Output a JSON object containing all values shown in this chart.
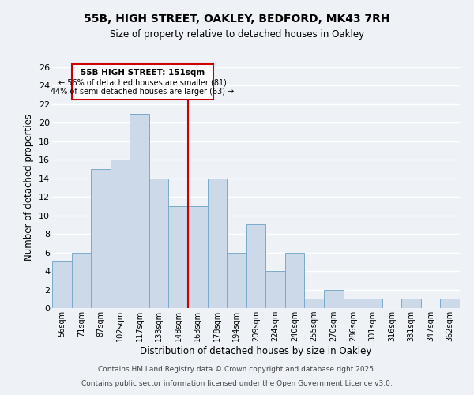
{
  "title1": "55B, HIGH STREET, OAKLEY, BEDFORD, MK43 7RH",
  "title2": "Size of property relative to detached houses in Oakley",
  "xlabel": "Distribution of detached houses by size in Oakley",
  "ylabel": "Number of detached properties",
  "bar_color": "#ccd9e8",
  "bar_edge_color": "#7aaaca",
  "categories": [
    "56sqm",
    "71sqm",
    "87sqm",
    "102sqm",
    "117sqm",
    "133sqm",
    "148sqm",
    "163sqm",
    "178sqm",
    "194sqm",
    "209sqm",
    "224sqm",
    "240sqm",
    "255sqm",
    "270sqm",
    "286sqm",
    "301sqm",
    "316sqm",
    "331sqm",
    "347sqm",
    "362sqm"
  ],
  "values": [
    5,
    6,
    15,
    16,
    21,
    14,
    11,
    11,
    14,
    6,
    9,
    4,
    6,
    1,
    2,
    1,
    1,
    0,
    1,
    0,
    1
  ],
  "ylim": [
    0,
    26
  ],
  "yticks": [
    0,
    2,
    4,
    6,
    8,
    10,
    12,
    14,
    16,
    18,
    20,
    22,
    24,
    26
  ],
  "vline_x_idx": 6,
  "vline_color": "#cc0000",
  "annotation_title": "55B HIGH STREET: 151sqm",
  "annotation_line1": "← 56% of detached houses are smaller (81)",
  "annotation_line2": "44% of semi-detached houses are larger (63) →",
  "annotation_box_color": "#cc0000",
  "footnote1": "Contains HM Land Registry data © Crown copyright and database right 2025.",
  "footnote2": "Contains public sector information licensed under the Open Government Licence v3.0.",
  "background_color": "#eef2f7",
  "grid_color": "#ffffff"
}
